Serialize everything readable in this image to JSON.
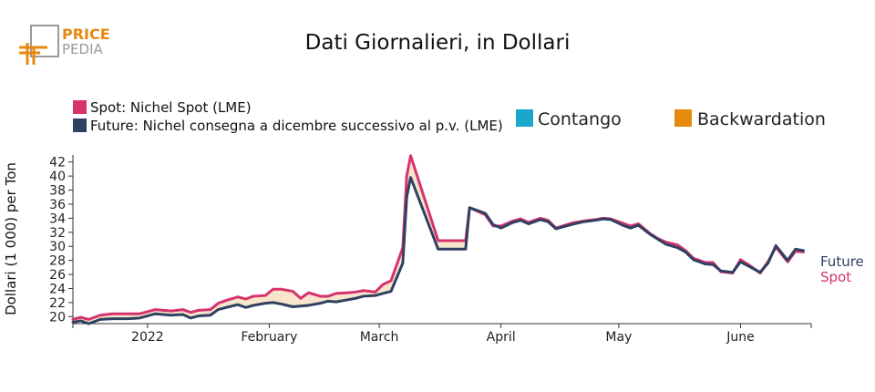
{
  "logo": {
    "line1": "PRICE",
    "line2": "PEDIA"
  },
  "colors": {
    "spot": "#d6336c",
    "future": "#2f4061",
    "contango": "#1aa7c9",
    "backwardation": "#e6890f",
    "fill": "#f7e6cc"
  },
  "chart_data": {
    "type": "line",
    "title": "Dati Giornalieri, in Dollari",
    "ylabel": "Dollari (1 000) per Ton",
    "xlabel": "",
    "ylim": [
      19,
      43
    ],
    "yticks": [
      20,
      22,
      24,
      26,
      28,
      30,
      32,
      34,
      36,
      38,
      40,
      42
    ],
    "xlim": [
      "2021-12-13",
      "2022-06-19"
    ],
    "xticks": [
      {
        "date": "2022-01-01",
        "label": "2022"
      },
      {
        "date": "2022-02-01",
        "label": "February"
      },
      {
        "date": "2022-03-01",
        "label": "March"
      },
      {
        "date": "2022-04-01",
        "label": "April"
      },
      {
        "date": "2022-05-01",
        "label": "May"
      },
      {
        "date": "2022-06-01",
        "label": "June"
      }
    ],
    "legend": {
      "spot": "Spot: Nichel Spot (LME)",
      "future": "Future: Nichel consegna a dicembre successivo al p.v. (LME)",
      "contango": "Contango",
      "backwardation": "Backwardation"
    },
    "end_labels": {
      "future": "Future",
      "spot": "Spot"
    },
    "dates": [
      "2021-12-13",
      "2021-12-15",
      "2021-12-17",
      "2021-12-20",
      "2021-12-23",
      "2021-12-27",
      "2021-12-30",
      "2022-01-03",
      "2022-01-05",
      "2022-01-07",
      "2022-01-10",
      "2022-01-12",
      "2022-01-14",
      "2022-01-17",
      "2022-01-19",
      "2022-01-21",
      "2022-01-24",
      "2022-01-26",
      "2022-01-28",
      "2022-01-31",
      "2022-02-02",
      "2022-02-04",
      "2022-02-07",
      "2022-02-09",
      "2022-02-11",
      "2022-02-14",
      "2022-02-16",
      "2022-02-18",
      "2022-02-21",
      "2022-02-23",
      "2022-02-25",
      "2022-02-28",
      "2022-03-02",
      "2022-03-04",
      "2022-03-07",
      "2022-03-08",
      "2022-03-09",
      "2022-03-16",
      "2022-03-23",
      "2022-03-24",
      "2022-03-28",
      "2022-03-30",
      "2022-04-01",
      "2022-04-04",
      "2022-04-06",
      "2022-04-08",
      "2022-04-11",
      "2022-04-13",
      "2022-04-15",
      "2022-04-19",
      "2022-04-22",
      "2022-04-25",
      "2022-04-27",
      "2022-04-29",
      "2022-05-02",
      "2022-05-04",
      "2022-05-06",
      "2022-05-09",
      "2022-05-11",
      "2022-05-13",
      "2022-05-16",
      "2022-05-18",
      "2022-05-20",
      "2022-05-23",
      "2022-05-25",
      "2022-05-27",
      "2022-05-30",
      "2022-06-01",
      "2022-06-03",
      "2022-06-06",
      "2022-06-08",
      "2022-06-10",
      "2022-06-13",
      "2022-06-15",
      "2022-06-17"
    ],
    "series": [
      {
        "name": "Spot",
        "values": [
          19.6,
          19.9,
          19.6,
          20.2,
          20.4,
          20.4,
          20.4,
          21.0,
          20.9,
          20.8,
          21.0,
          20.6,
          20.9,
          21.0,
          21.9,
          22.3,
          22.8,
          22.5,
          22.9,
          23.0,
          23.9,
          23.9,
          23.6,
          22.6,
          23.4,
          22.9,
          22.9,
          23.3,
          23.4,
          23.5,
          23.7,
          23.5,
          24.6,
          25.1,
          29.8,
          40.0,
          42.9,
          30.8,
          30.8,
          35.5,
          34.5,
          32.9,
          32.9,
          33.6,
          33.9,
          33.4,
          34.0,
          33.7,
          32.6,
          33.3,
          33.6,
          33.8,
          34.0,
          33.9,
          33.3,
          32.9,
          33.2,
          31.8,
          31.1,
          30.6,
          30.2,
          29.4,
          28.3,
          27.7,
          27.7,
          26.4,
          26.2,
          28.1,
          27.4,
          26.2,
          27.8,
          29.9,
          27.8,
          29.3,
          29.2
        ]
      },
      {
        "name": "Future",
        "values": [
          19.2,
          19.4,
          19.0,
          19.6,
          19.7,
          19.7,
          19.8,
          20.4,
          20.3,
          20.2,
          20.3,
          19.8,
          20.1,
          20.2,
          21.0,
          21.3,
          21.7,
          21.3,
          21.6,
          21.9,
          22.0,
          21.8,
          21.4,
          21.5,
          21.6,
          21.9,
          22.2,
          22.1,
          22.4,
          22.6,
          22.9,
          23.0,
          23.3,
          23.6,
          27.6,
          37.0,
          39.8,
          29.6,
          29.6,
          35.5,
          34.7,
          33.1,
          32.6,
          33.4,
          33.7,
          33.2,
          33.8,
          33.5,
          32.5,
          33.1,
          33.5,
          33.7,
          33.9,
          33.8,
          33.0,
          32.6,
          33.0,
          31.7,
          31.0,
          30.3,
          29.8,
          29.2,
          28.1,
          27.5,
          27.4,
          26.5,
          26.3,
          27.8,
          27.2,
          26.3,
          27.6,
          30.1,
          28.0,
          29.6,
          29.4
        ]
      }
    ]
  }
}
